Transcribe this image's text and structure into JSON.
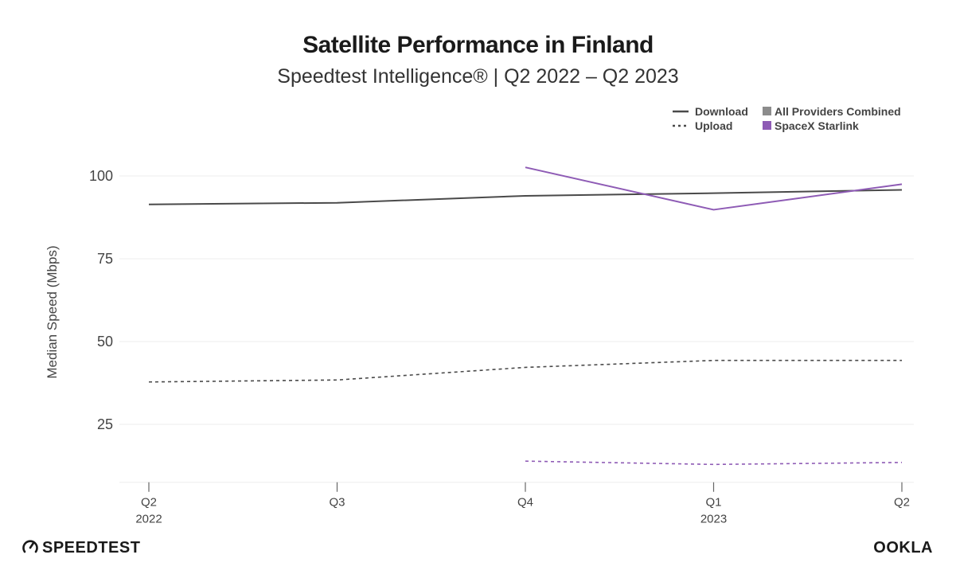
{
  "chart_data": {
    "type": "line",
    "title": "Satellite Performance in Finland",
    "subtitle": "Speedtest Intelligence® | Q2 2022 – Q2 2023",
    "ylabel": "Median Speed (Mbps)",
    "xlabel": "",
    "categories": [
      "Q2",
      "Q3",
      "Q4",
      "Q1",
      "Q2"
    ],
    "category_years": [
      "2022",
      "",
      "",
      "2023",
      ""
    ],
    "yticks": [
      25,
      50,
      75,
      100
    ],
    "ylim": [
      8,
      106
    ],
    "grid": true,
    "legend": {
      "placement": "top-right",
      "line_styles": [
        {
          "label": "Download",
          "style": "solid"
        },
        {
          "label": "Upload",
          "style": "dotted"
        }
      ],
      "providers": [
        {
          "label": "All Providers Combined",
          "color": "#8c8c8c"
        },
        {
          "label": "SpaceX Starlink",
          "color": "#8e5bb5"
        }
      ]
    },
    "series": [
      {
        "provider": "All Providers Combined",
        "metric": "Download",
        "color": "#4a4a4a",
        "style": "solid",
        "values": [
          91.4,
          91.9,
          94.0,
          94.8,
          95.8
        ]
      },
      {
        "provider": "All Providers Combined",
        "metric": "Upload",
        "color": "#4a4a4a",
        "style": "dashed",
        "values": [
          37.8,
          38.4,
          42.2,
          44.3,
          44.3
        ]
      },
      {
        "provider": "SpaceX Starlink",
        "metric": "Download",
        "color": "#8e5bb5",
        "style": "solid",
        "values": [
          null,
          null,
          102.6,
          89.8,
          97.5
        ]
      },
      {
        "provider": "SpaceX Starlink",
        "metric": "Upload",
        "color": "#8e5bb5",
        "style": "dashed",
        "values": [
          null,
          null,
          13.9,
          12.9,
          13.5
        ]
      }
    ]
  },
  "branding": {
    "left_logo": "SPEEDTEST",
    "right_logo": "OOKLA"
  }
}
